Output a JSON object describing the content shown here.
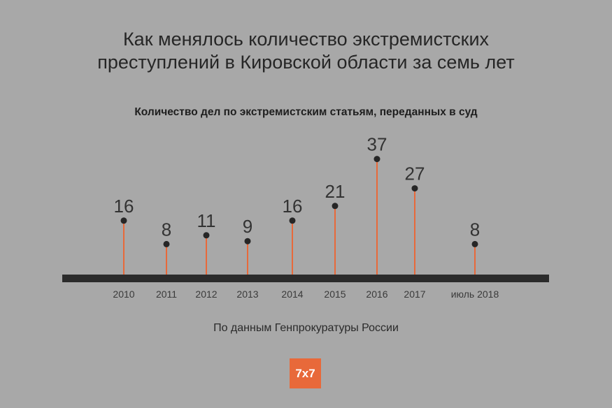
{
  "colors": {
    "stem": "#e8693a",
    "dot": "#262626",
    "axis": "#2b2b2b",
    "background": "#a8a8a8"
  },
  "logo": "7x7",
  "source": "По данным Генпрокуратуры России",
  "chart_data": {
    "type": "bar",
    "title": "Как менялось количество экстремистских преступлений в Кировской области за семь лет",
    "subtitle": "Количество дел по экстремистским статьям, переданных в суд",
    "categories": [
      "2010",
      "2011",
      "2012",
      "2013",
      "2014",
      "2015",
      "2016",
      "2017",
      "июль 2018"
    ],
    "values": [
      16,
      8,
      11,
      9,
      16,
      21,
      37,
      27,
      8
    ],
    "xlabel": "",
    "ylabel": "",
    "grid": false
  }
}
